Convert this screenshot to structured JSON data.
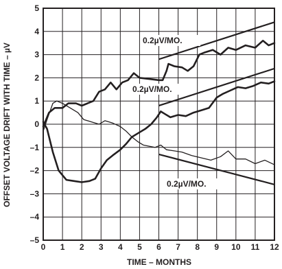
{
  "chart_data": {
    "type": "line",
    "xlabel": "TIME – MONTHS",
    "ylabel": "OFFSET VOLTAGE DRIFT WITH TIME – µV",
    "xlim": [
      0,
      12
    ],
    "ylim": [
      -5,
      5
    ],
    "x_ticks": [
      "0",
      "1",
      "2",
      "3",
      "4",
      "5",
      "6",
      "7",
      "8",
      "9",
      "10",
      "11",
      "12"
    ],
    "y_ticks": [
      "–5",
      "–4",
      "–3",
      "–2",
      "–1",
      "0",
      "1",
      "2",
      "3",
      "4",
      "5"
    ],
    "grid": true,
    "series": [
      {
        "points": [
          [
            0,
            -0.1
          ],
          [
            0.3,
            0.5
          ],
          [
            0.6,
            0.7
          ],
          [
            1,
            0.7
          ],
          [
            1.3,
            0.9
          ],
          [
            1.7,
            0.9
          ],
          [
            2,
            0.8
          ],
          [
            2.3,
            0.9
          ],
          [
            2.6,
            1.0
          ],
          [
            2.9,
            1.4
          ],
          [
            3.2,
            1.5
          ],
          [
            3.5,
            1.8
          ],
          [
            3.8,
            1.5
          ],
          [
            4.1,
            1.8
          ],
          [
            4.4,
            1.9
          ],
          [
            4.7,
            2.2
          ],
          [
            5,
            2.0
          ],
          [
            5.5,
            1.95
          ],
          [
            6,
            1.9
          ],
          [
            6.2,
            1.9
          ],
          [
            6.4,
            2.3
          ],
          [
            6.5,
            2.6
          ],
          [
            6.8,
            2.5
          ],
          [
            7.2,
            2.45
          ],
          [
            7.5,
            2.3
          ],
          [
            7.8,
            2.5
          ],
          [
            8.1,
            3.0
          ],
          [
            8.4,
            3.1
          ],
          [
            8.8,
            3.2
          ],
          [
            9.2,
            3.0
          ],
          [
            9.6,
            3.3
          ],
          [
            10,
            3.2
          ],
          [
            10.5,
            3.4
          ],
          [
            11,
            3.3
          ],
          [
            11.4,
            3.6
          ],
          [
            11.7,
            3.4
          ],
          [
            12,
            3.5
          ]
        ],
        "stroke_width": 2.6
      },
      {
        "points": [
          [
            0,
            -0.3
          ],
          [
            0.2,
            0.2
          ],
          [
            0.5,
            0.9
          ],
          [
            0.7,
            1.0
          ],
          [
            1,
            0.9
          ],
          [
            1.4,
            0.7
          ],
          [
            1.8,
            0.5
          ],
          [
            2.1,
            0.2
          ],
          [
            2.5,
            0.1
          ],
          [
            2.9,
            0
          ],
          [
            3.2,
            0.15
          ],
          [
            3.6,
            0.05
          ],
          [
            4.0,
            -0.1
          ],
          [
            4.3,
            -0.3
          ],
          [
            4.6,
            -0.55
          ],
          [
            4.9,
            -0.75
          ],
          [
            5.2,
            -0.9
          ],
          [
            5.5,
            -0.95
          ],
          [
            5.8,
            -1.0
          ],
          [
            6.1,
            -0.9
          ],
          [
            6.4,
            -1.1
          ],
          [
            6.8,
            -1.15
          ],
          [
            7.2,
            -1.2
          ],
          [
            7.7,
            -1.35
          ],
          [
            8.2,
            -1.45
          ],
          [
            8.7,
            -1.55
          ],
          [
            9.2,
            -1.4
          ],
          [
            9.6,
            -1.15
          ],
          [
            10,
            -1.5
          ],
          [
            10.5,
            -1.5
          ],
          [
            11,
            -1.7
          ],
          [
            11.5,
            -1.55
          ],
          [
            12,
            -1.75
          ]
        ],
        "stroke_width": 1.3
      },
      {
        "points": [
          [
            0,
            0.1
          ],
          [
            0.2,
            -0.2
          ],
          [
            0.5,
            -1.2
          ],
          [
            0.8,
            -2.0
          ],
          [
            1.2,
            -2.4
          ],
          [
            1.6,
            -2.45
          ],
          [
            2,
            -2.5
          ],
          [
            2.4,
            -2.45
          ],
          [
            2.7,
            -2.35
          ],
          [
            3.0,
            -1.9
          ],
          [
            3.3,
            -1.55
          ],
          [
            3.6,
            -1.35
          ],
          [
            4.0,
            -1.1
          ],
          [
            4.3,
            -0.85
          ],
          [
            4.6,
            -0.55
          ],
          [
            5,
            -0.35
          ],
          [
            5.3,
            -0.2
          ],
          [
            5.6,
            0.0
          ],
          [
            5.9,
            0.3
          ],
          [
            6.1,
            0.55
          ],
          [
            6.3,
            0.45
          ],
          [
            6.6,
            0.3
          ],
          [
            7.0,
            0.4
          ],
          [
            7.4,
            0.35
          ],
          [
            7.8,
            0.5
          ],
          [
            8.2,
            0.6
          ],
          [
            8.6,
            0.7
          ],
          [
            9.0,
            1.15
          ],
          [
            9.3,
            1.3
          ],
          [
            9.7,
            1.45
          ],
          [
            10.1,
            1.6
          ],
          [
            10.5,
            1.55
          ],
          [
            10.9,
            1.65
          ],
          [
            11.3,
            1.8
          ],
          [
            11.7,
            1.75
          ],
          [
            12,
            1.85
          ]
        ],
        "stroke_width": 2.6
      }
    ],
    "reference_lines": [
      {
        "label": "0.2µV/MO.",
        "from": [
          6,
          2.8
        ],
        "to": [
          12,
          4.4
        ]
      },
      {
        "label": "0.2µV/MO.",
        "from": [
          6,
          0.8
        ],
        "to": [
          12,
          2.4
        ]
      },
      {
        "label": "0.2µV/MO.",
        "from": [
          6,
          -1.3
        ],
        "to": [
          12,
          -2.6
        ]
      }
    ]
  }
}
